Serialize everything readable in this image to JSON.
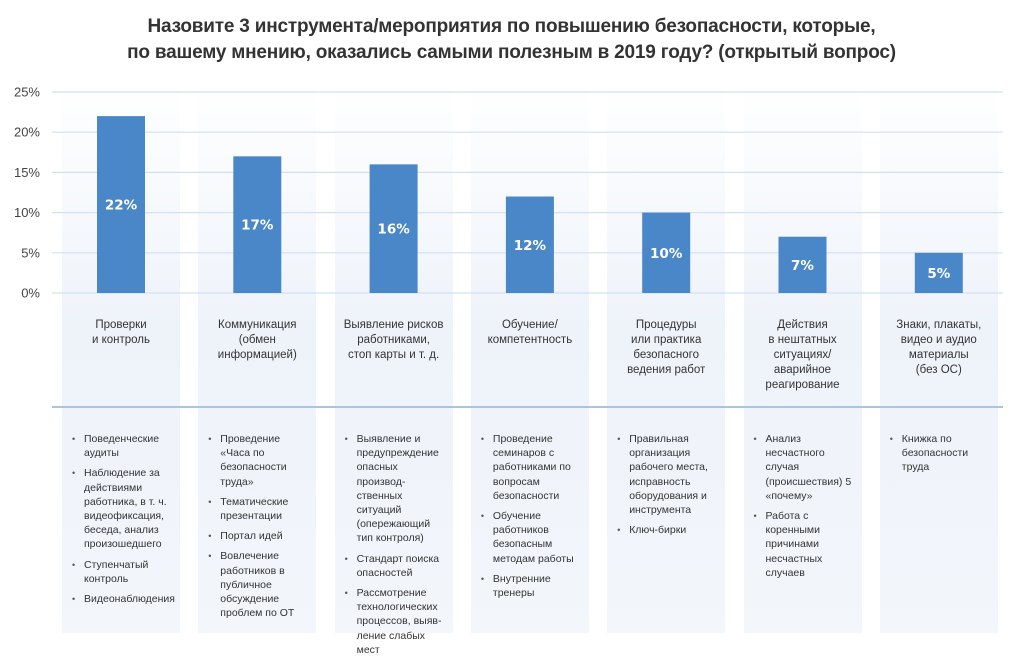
{
  "title_lines": [
    "Назовите 3 инструмента/мероприятия по повышению безопасности, которые,",
    "по вашему мнению, оказались самыми полезным в 2019 году? (открытый вопрос)"
  ],
  "chart_data": {
    "type": "bar",
    "title": "Назовите 3 инструмента/мероприятия по повышению безопасности, которые, по вашему мнению, оказались самыми полезным в 2019 году? (открытый вопрос)",
    "categories": [
      [
        "Проверки",
        "и контроль"
      ],
      [
        "Коммуникация",
        "(обмен",
        "информацией)"
      ],
      [
        "Выявление рисков",
        "работниками,",
        "стоп карты и т. д."
      ],
      [
        "Обучение/",
        "компетентность"
      ],
      [
        "Процедуры",
        "или практика",
        "безопасного",
        "ведения работ"
      ],
      [
        "Действия",
        "в нештатных",
        "ситуациях/",
        "аварийное",
        "реагирование"
      ],
      [
        "Знаки, плакаты,",
        "видео и аудио",
        "материалы",
        "(без ОС)"
      ]
    ],
    "values": [
      22,
      17,
      16,
      12,
      10,
      7,
      5
    ],
    "data_labels": [
      "22%",
      "17%",
      "16%",
      "12%",
      "10%",
      "7%",
      "5%"
    ],
    "yticks": [
      "0%",
      "5%",
      "10%",
      "15%",
      "20%",
      "25%"
    ],
    "ylim": [
      0,
      25
    ],
    "grid": true,
    "bar_color": "#4a87c8",
    "xlabel": "",
    "ylabel": ""
  },
  "examples": [
    [
      "Поведенческие аудиты",
      "Наблюдение за действиями работника, в т. ч. видеофиксация, беседа, анализ произошедшего",
      "Ступенчатый контроль",
      "Видеонаблюдения"
    ],
    [
      "Проведение «Часа по безопасности труда»",
      "Тематические презентации",
      "Портал идей",
      "Вовлечение работников в публичное обсуждение проблем по ОТ"
    ],
    [
      "Выявление и предупреждение опасных производ-ственных ситуаций (опережающий тип контроля)",
      "Стандарт поиска опасностей",
      "Рассмотрение технологических процессов, выяв-ление слабых мест"
    ],
    [
      "Проведение семинаров с работниками по вопросам безопасности",
      "Обучение работников безопасным методам работы",
      "Внутренние тренеры"
    ],
    [
      "Правильная организация рабочего места, исправность оборудования и инструмента",
      "Ключ-бирки"
    ],
    [
      "Анализ несчастного случая (происшествия) 5 «почему»",
      "Работа с коренными причинами несчастных случаев"
    ],
    [
      "Книжка по безопасности труда"
    ]
  ]
}
